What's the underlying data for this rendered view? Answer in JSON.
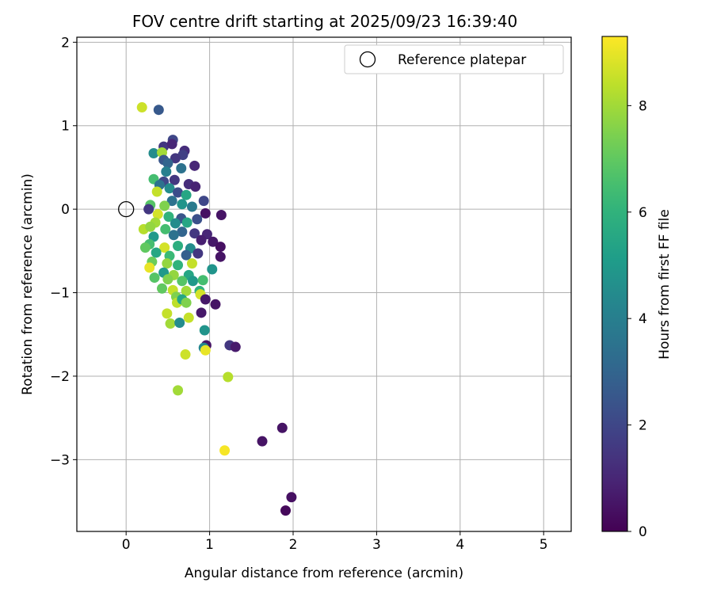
{
  "chart_data": {
    "type": "scatter",
    "title": "FOV centre drift starting at 2025/09/23 16:39:40",
    "xlabel": "Angular distance from reference (arcmin)",
    "ylabel": "Rotation from reference (arcmin)",
    "xlim": [
      -0.59,
      5.33
    ],
    "ylim": [
      -3.86,
      2.06
    ],
    "xticks": [
      0,
      1,
      2,
      3,
      4,
      5
    ],
    "yticks": [
      2,
      1,
      0,
      -1,
      -2,
      -3
    ],
    "grid": true,
    "legend": {
      "position": "top-right",
      "label": "Reference platepar"
    },
    "reference": {
      "x": 0,
      "y": 0
    },
    "colorbar": {
      "label": "Hours from first FF file",
      "colormap": "viridis",
      "range": [
        0,
        9.3
      ],
      "ticks": [
        0,
        2,
        4,
        6,
        8
      ]
    },
    "points": [
      [
        0.19,
        1.22,
        8.6
      ],
      [
        0.39,
        1.19,
        2.6
      ],
      [
        0.56,
        0.83,
        2.0
      ],
      [
        0.45,
        0.75,
        1.5
      ],
      [
        0.7,
        0.7,
        1.2
      ],
      [
        0.68,
        0.65,
        1.8
      ],
      [
        0.33,
        0.67,
        4.5
      ],
      [
        0.43,
        0.68,
        8.0
      ],
      [
        0.55,
        0.78,
        1.0
      ],
      [
        0.45,
        0.59,
        2.5
      ],
      [
        0.59,
        0.61,
        1.5
      ],
      [
        0.82,
        0.52,
        1.0
      ],
      [
        0.5,
        0.55,
        3.0
      ],
      [
        0.66,
        0.49,
        3.5
      ],
      [
        0.48,
        0.45,
        4.0
      ],
      [
        0.33,
        0.36,
        6.5
      ],
      [
        0.45,
        0.33,
        2.0
      ],
      [
        0.58,
        0.35,
        1.5
      ],
      [
        0.75,
        0.3,
        1.2
      ],
      [
        0.4,
        0.29,
        3.5
      ],
      [
        0.83,
        0.27,
        0.9
      ],
      [
        0.52,
        0.25,
        4.5
      ],
      [
        0.37,
        0.21,
        8.5
      ],
      [
        0.62,
        0.2,
        2.2
      ],
      [
        0.72,
        0.17,
        5.5
      ],
      [
        0.93,
        0.1,
        2.0
      ],
      [
        0.55,
        0.1,
        3.5
      ],
      [
        0.29,
        0.05,
        6.8
      ],
      [
        0.46,
        0.04,
        7.5
      ],
      [
        0.67,
        0.06,
        4.8
      ],
      [
        0.79,
        0.03,
        3.8
      ],
      [
        0.27,
        0.0,
        1.5
      ],
      [
        0.95,
        -0.05,
        0.4
      ],
      [
        1.14,
        -0.07,
        0.5
      ],
      [
        0.38,
        -0.06,
        8.7
      ],
      [
        0.51,
        -0.09,
        6.0
      ],
      [
        0.66,
        -0.11,
        2.5
      ],
      [
        0.85,
        -0.12,
        2.3
      ],
      [
        0.35,
        -0.16,
        8.0
      ],
      [
        0.59,
        -0.17,
        4.5
      ],
      [
        0.73,
        -0.16,
        5.5
      ],
      [
        0.21,
        -0.24,
        8.3
      ],
      [
        0.29,
        -0.21,
        7.8
      ],
      [
        0.47,
        -0.24,
        6.5
      ],
      [
        0.67,
        -0.27,
        3.0
      ],
      [
        0.82,
        -0.29,
        1.5
      ],
      [
        0.97,
        -0.3,
        1.0
      ],
      [
        0.33,
        -0.33,
        5.0
      ],
      [
        0.57,
        -0.31,
        3.5
      ],
      [
        0.9,
        -0.37,
        0.8
      ],
      [
        1.04,
        -0.39,
        0.6
      ],
      [
        0.28,
        -0.42,
        6.5
      ],
      [
        0.46,
        -0.46,
        8.7
      ],
      [
        0.62,
        -0.44,
        5.8
      ],
      [
        0.77,
        -0.47,
        4.5
      ],
      [
        1.13,
        -0.45,
        0.4
      ],
      [
        0.23,
        -0.46,
        7.0
      ],
      [
        0.36,
        -0.52,
        5.5
      ],
      [
        0.52,
        -0.56,
        6.3
      ],
      [
        0.72,
        -0.55,
        2.8
      ],
      [
        0.86,
        -0.53,
        1.5
      ],
      [
        1.13,
        -0.57,
        0.5
      ],
      [
        0.31,
        -0.63,
        7.2
      ],
      [
        0.49,
        -0.65,
        7.8
      ],
      [
        0.62,
        -0.67,
        6.0
      ],
      [
        0.79,
        -0.65,
        8.5
      ],
      [
        0.28,
        -0.7,
        9.0
      ],
      [
        0.45,
        -0.76,
        5.0
      ],
      [
        0.57,
        -0.79,
        7.8
      ],
      [
        0.75,
        -0.79,
        5.5
      ],
      [
        1.03,
        -0.72,
        4.8
      ],
      [
        0.34,
        -0.82,
        6.8
      ],
      [
        0.5,
        -0.84,
        7.5
      ],
      [
        0.67,
        -0.86,
        6.8
      ],
      [
        0.8,
        -0.86,
        5.0
      ],
      [
        0.92,
        -0.85,
        6.5
      ],
      [
        0.43,
        -0.95,
        7.0
      ],
      [
        0.56,
        -0.97,
        8.5
      ],
      [
        0.72,
        -0.98,
        8.0
      ],
      [
        0.88,
        -0.98,
        6.0
      ],
      [
        0.6,
        -1.05,
        7.5
      ],
      [
        0.89,
        -1.02,
        8.7
      ],
      [
        0.95,
        -1.08,
        0.6
      ],
      [
        0.61,
        -1.12,
        8.4
      ],
      [
        0.67,
        -1.08,
        5.5
      ],
      [
        0.72,
        -1.12,
        7.5
      ],
      [
        1.07,
        -1.14,
        0.5
      ],
      [
        0.49,
        -1.25,
        8.5
      ],
      [
        0.75,
        -1.3,
        8.5
      ],
      [
        0.9,
        -1.24,
        0.6
      ],
      [
        0.53,
        -1.37,
        8.0
      ],
      [
        0.64,
        -1.36,
        4.5
      ],
      [
        0.94,
        -1.45,
        4.8
      ],
      [
        0.96,
        -1.63,
        0.5
      ],
      [
        0.93,
        -1.66,
        4.3
      ],
      [
        0.95,
        -1.69,
        9.0
      ],
      [
        1.24,
        -1.63,
        1.5
      ],
      [
        1.31,
        -1.65,
        0.7
      ],
      [
        0.71,
        -1.74,
        8.6
      ],
      [
        0.62,
        -2.17,
        8.0
      ],
      [
        1.22,
        -2.01,
        8.3
      ],
      [
        1.18,
        -2.89,
        9.2
      ],
      [
        1.63,
        -2.78,
        0.5
      ],
      [
        1.87,
        -2.62,
        0.5
      ],
      [
        1.98,
        -3.45,
        0.4
      ],
      [
        1.91,
        -3.61,
        0.2
      ]
    ]
  }
}
